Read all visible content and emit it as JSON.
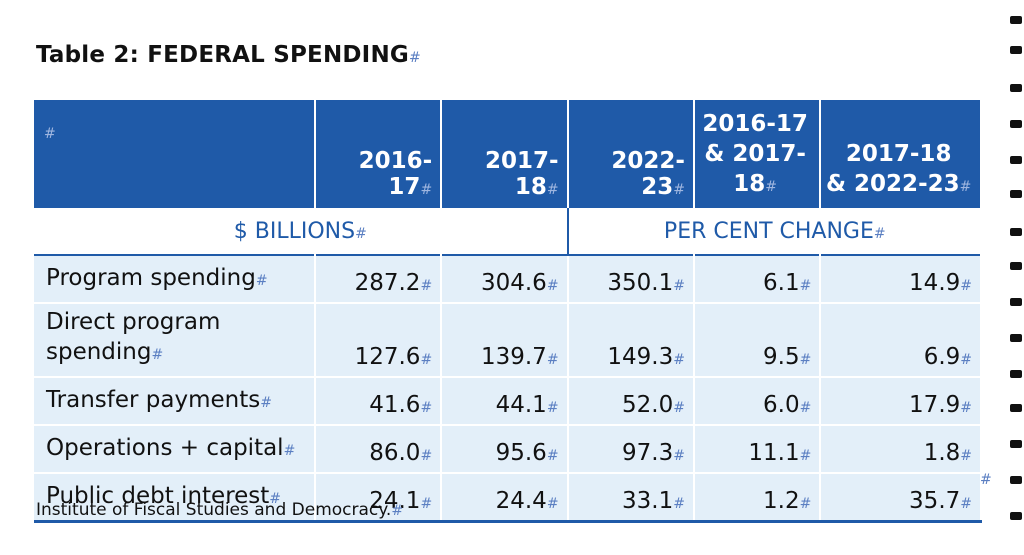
{
  "title": "Table 2: FEDERAL SPENDING",
  "para_mark": "#",
  "header": {
    "cols": [
      "2016-17",
      "2017-18",
      "2022-23"
    ],
    "change_cols": [
      {
        "line1": "2016-17",
        "line2": "& 2017-18"
      },
      {
        "line1": "2017-18",
        "line2": "& 2022-23"
      }
    ]
  },
  "subheader": {
    "billions": "$ BILLIONS",
    "change": "PER CENT CHANGE"
  },
  "rows": [
    {
      "label": "Program spending",
      "v": [
        "287.2",
        "304.6",
        "350.1",
        "6.1",
        "14.9"
      ]
    },
    {
      "label1": "Direct program",
      "label2": "spending",
      "v": [
        "127.6",
        "139.7",
        "149.3",
        "9.5",
        "6.9"
      ]
    },
    {
      "label": "Transfer payments",
      "v": [
        "41.6",
        "44.1",
        "52.0",
        "6.0",
        "17.9"
      ]
    },
    {
      "label": "Operations + capital",
      "v": [
        "86.0",
        "95.6",
        "97.3",
        "11.1",
        "1.8"
      ]
    },
    {
      "label": "Public debt interest",
      "v": [
        "24.1",
        "24.4",
        "33.1",
        "1.2",
        "35.7"
      ]
    }
  ],
  "source": "Institute of Fiscal Studies and Democracy."
}
